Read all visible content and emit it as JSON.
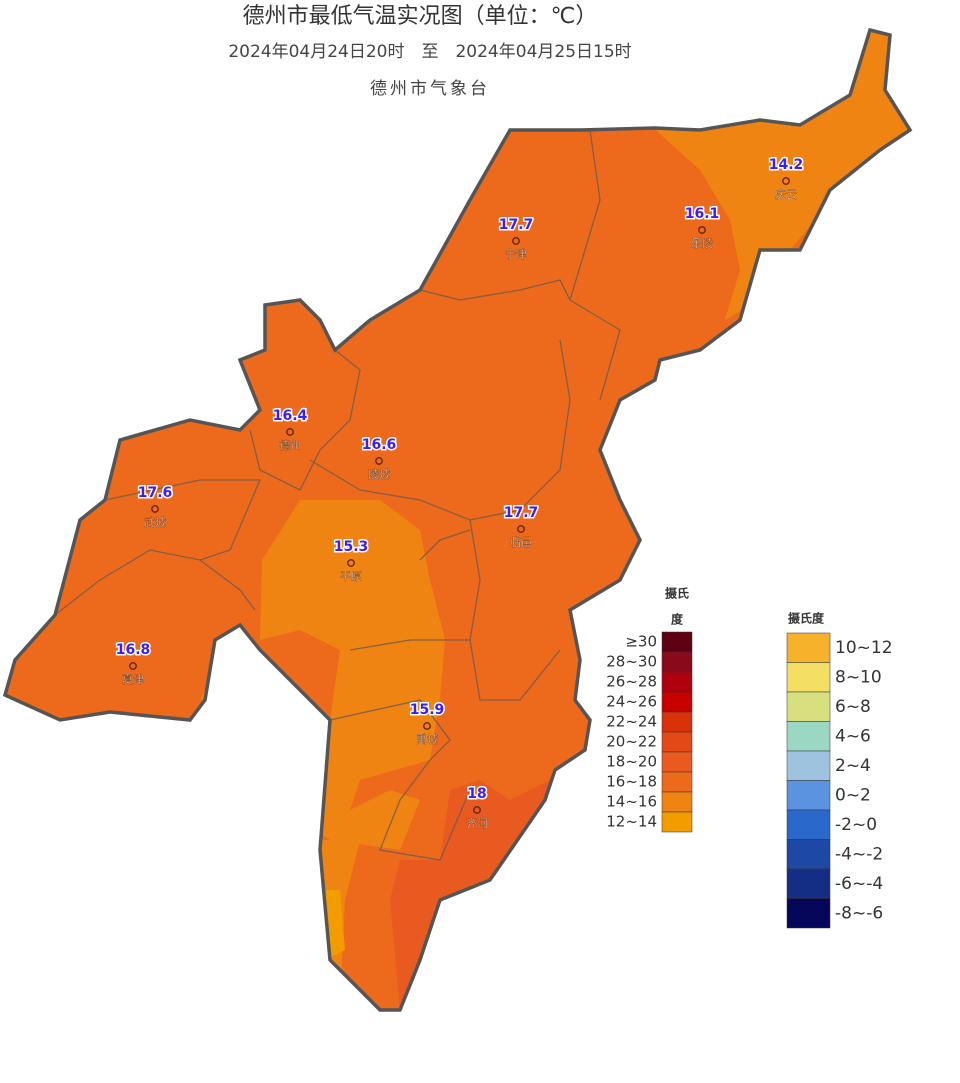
{
  "header": {
    "title": "德州市最低气温实况图（单位：℃）",
    "period": "2024年04月24日20时　至　2024年04月25日15时",
    "agency": "德州市气象台"
  },
  "stations": [
    {
      "name": "庆云",
      "value": 14.2
    },
    {
      "name": "乐陵",
      "value": 16.1
    },
    {
      "name": "宁津",
      "value": 17.7
    },
    {
      "name": "德州",
      "value": 16.4
    },
    {
      "name": "陵城",
      "value": 16.6
    },
    {
      "name": "武城",
      "value": 17.6
    },
    {
      "name": "临邑",
      "value": 17.7
    },
    {
      "name": "平原",
      "value": 15.3
    },
    {
      "name": "夏津",
      "value": 16.8
    },
    {
      "name": "禹城",
      "value": 15.9
    },
    {
      "name": "齐河",
      "value": 18
    }
  ],
  "legend_warm": {
    "title_lines": [
      "摄氏",
      "度"
    ],
    "items": [
      {
        "label": "≥30",
        "color": "#5c0012"
      },
      {
        "label": "28~30",
        "color": "#8a0a1a"
      },
      {
        "label": "26~28",
        "color": "#b0000f"
      },
      {
        "label": "24~26",
        "color": "#c80000"
      },
      {
        "label": "22~24",
        "color": "#d9320a"
      },
      {
        "label": "20~22",
        "color": "#e34817"
      },
      {
        "label": "18~20",
        "color": "#ea5a20"
      },
      {
        "label": "16~18",
        "color": "#ed6a1c"
      },
      {
        "label": "14~16",
        "color": "#ef8412"
      },
      {
        "label": "12~14",
        "color": "#f39c00"
      }
    ]
  },
  "legend_cool": {
    "title": "摄氏度",
    "items": [
      {
        "label": "10~12",
        "color": "#f5b22a"
      },
      {
        "label": "8~10",
        "color": "#f4de63"
      },
      {
        "label": "6~8",
        "color": "#d8df7f"
      },
      {
        "label": "4~6",
        "color": "#9bd8c4"
      },
      {
        "label": "2~4",
        "color": "#9dc3df"
      },
      {
        "label": "0~2",
        "color": "#5b93e0"
      },
      {
        "label": "-2~0",
        "color": "#2a68cc"
      },
      {
        "label": "-4~-2",
        "color": "#1d48a5"
      },
      {
        "label": "-6~-4",
        "color": "#142e86"
      },
      {
        "label": "-8~-6",
        "color": "#06065a"
      }
    ]
  }
}
